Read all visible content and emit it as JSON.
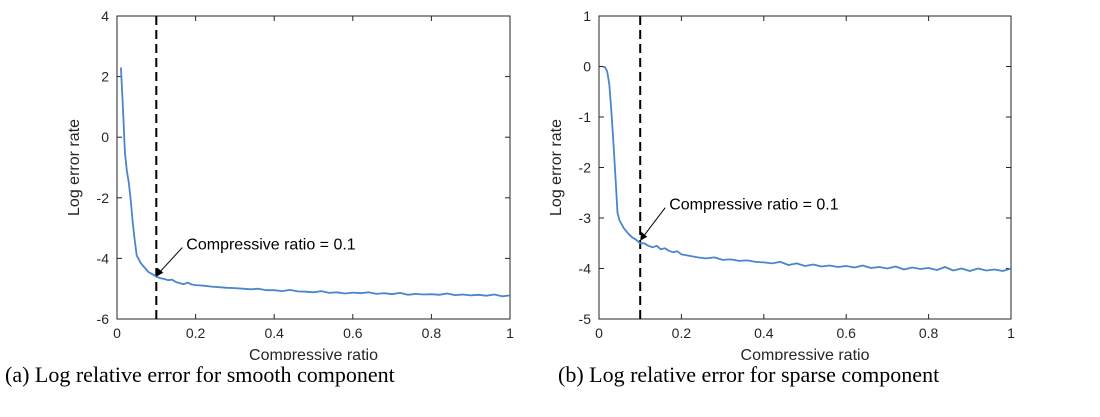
{
  "chart_data": [
    {
      "type": "line",
      "caption": "(a) Log relative error for smooth component",
      "xlabel": "Compressive ratio",
      "ylabel": "Log error rate",
      "xlim": [
        0,
        1
      ],
      "ylim": [
        -6,
        4
      ],
      "xticks": [
        0,
        0.2,
        0.4,
        0.6,
        0.8,
        1
      ],
      "xtick_labels": [
        "0",
        "0.2",
        "0.4",
        "0.6",
        "0.8",
        "1"
      ],
      "yticks": [
        -6,
        -4,
        -2,
        0,
        2,
        4
      ],
      "ytick_labels": [
        "-6",
        "-4",
        "-2",
        "0",
        "2",
        "4"
      ],
      "grid": false,
      "line_color": "#4a86c8",
      "vline_x": 0.1,
      "annotation": {
        "text": "Compressive ratio = 0.1",
        "x": 0.1,
        "y": -4.6
      },
      "series": [
        {
          "x": [
            0.01,
            0.015,
            0.02,
            0.025,
            0.03,
            0.035,
            0.04,
            0.045,
            0.05,
            0.06,
            0.07,
            0.08,
            0.09,
            0.1,
            0.11,
            0.12,
            0.13,
            0.14,
            0.15,
            0.16,
            0.17,
            0.18,
            0.19,
            0.2,
            0.22,
            0.24,
            0.26,
            0.28,
            0.3,
            0.32,
            0.34,
            0.36,
            0.38,
            0.4,
            0.42,
            0.44,
            0.46,
            0.48,
            0.5,
            0.52,
            0.54,
            0.56,
            0.58,
            0.6,
            0.62,
            0.64,
            0.66,
            0.68,
            0.7,
            0.72,
            0.74,
            0.76,
            0.78,
            0.8,
            0.82,
            0.84,
            0.86,
            0.88,
            0.9,
            0.92,
            0.94,
            0.96,
            0.98,
            1.0
          ],
          "y": [
            2.3,
            1.0,
            -0.5,
            -1.1,
            -1.5,
            -2.1,
            -2.8,
            -3.4,
            -3.9,
            -4.15,
            -4.3,
            -4.45,
            -4.52,
            -4.6,
            -4.65,
            -4.68,
            -4.72,
            -4.7,
            -4.78,
            -4.82,
            -4.85,
            -4.8,
            -4.86,
            -4.88,
            -4.9,
            -4.93,
            -4.95,
            -4.97,
            -4.98,
            -5.0,
            -5.02,
            -5.0,
            -5.05,
            -5.05,
            -5.08,
            -5.04,
            -5.09,
            -5.1,
            -5.12,
            -5.08,
            -5.14,
            -5.12,
            -5.16,
            -5.13,
            -5.15,
            -5.12,
            -5.17,
            -5.15,
            -5.18,
            -5.14,
            -5.2,
            -5.17,
            -5.19,
            -5.18,
            -5.2,
            -5.16,
            -5.21,
            -5.19,
            -5.22,
            -5.2,
            -5.23,
            -5.19,
            -5.25,
            -5.22
          ]
        }
      ]
    },
    {
      "type": "line",
      "caption": "(b) Log relative error for sparse component",
      "xlabel": "Compressive ratio",
      "ylabel": "Log error rate",
      "xlim": [
        0,
        1
      ],
      "ylim": [
        -5,
        1
      ],
      "xticks": [
        0,
        0.2,
        0.4,
        0.6,
        0.8,
        1
      ],
      "xtick_labels": [
        "0",
        "0.2",
        "0.4",
        "0.6",
        "0.8",
        "1"
      ],
      "yticks": [
        -5,
        -4,
        -3,
        -2,
        -1,
        0,
        1
      ],
      "ytick_labels": [
        "-5",
        "-4",
        "-3",
        "-2",
        "-1",
        "0",
        "1"
      ],
      "grid": false,
      "line_color": "#4a86c8",
      "vline_x": 0.1,
      "annotation": {
        "text": "Compressive ratio = 0.1",
        "x": 0.1,
        "y": -3.45
      },
      "series": [
        {
          "x": [
            0.01,
            0.015,
            0.02,
            0.025,
            0.03,
            0.035,
            0.04,
            0.045,
            0.05,
            0.06,
            0.07,
            0.08,
            0.09,
            0.1,
            0.11,
            0.12,
            0.13,
            0.14,
            0.15,
            0.16,
            0.17,
            0.18,
            0.19,
            0.2,
            0.22,
            0.24,
            0.26,
            0.28,
            0.3,
            0.32,
            0.34,
            0.36,
            0.38,
            0.4,
            0.42,
            0.44,
            0.46,
            0.48,
            0.5,
            0.52,
            0.54,
            0.56,
            0.58,
            0.6,
            0.62,
            0.64,
            0.66,
            0.68,
            0.7,
            0.72,
            0.74,
            0.76,
            0.78,
            0.8,
            0.82,
            0.84,
            0.86,
            0.88,
            0.9,
            0.92,
            0.94,
            0.96,
            0.98,
            1.0
          ],
          "y": [
            0.0,
            -0.02,
            -0.1,
            -0.35,
            -0.9,
            -1.5,
            -2.2,
            -2.9,
            -3.05,
            -3.2,
            -3.3,
            -3.38,
            -3.43,
            -3.5,
            -3.5,
            -3.55,
            -3.58,
            -3.55,
            -3.62,
            -3.6,
            -3.65,
            -3.68,
            -3.66,
            -3.72,
            -3.75,
            -3.78,
            -3.8,
            -3.78,
            -3.83,
            -3.82,
            -3.85,
            -3.84,
            -3.87,
            -3.88,
            -3.9,
            -3.87,
            -3.93,
            -3.9,
            -3.95,
            -3.92,
            -3.96,
            -3.94,
            -3.97,
            -3.95,
            -3.98,
            -3.94,
            -3.99,
            -3.97,
            -4.0,
            -3.96,
            -4.02,
            -3.98,
            -4.01,
            -3.99,
            -4.03,
            -3.97,
            -4.04,
            -4.0,
            -4.05,
            -4.0,
            -4.04,
            -4.02,
            -4.05,
            -4.0
          ]
        }
      ]
    }
  ]
}
